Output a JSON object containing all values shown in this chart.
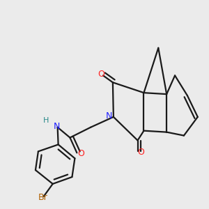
{
  "bg_color": "#ebebeb",
  "bond_color": "#1a1a1a",
  "N_color": "#2020ff",
  "O_color": "#ff2020",
  "Br_color": "#b06000",
  "H_color": "#2a8a8a",
  "bond_width": 1.6,
  "figsize": [
    3.0,
    3.0
  ],
  "dpi": 100,
  "xlim": [
    0.0,
    1.0
  ],
  "ylim": [
    0.05,
    1.05
  ]
}
